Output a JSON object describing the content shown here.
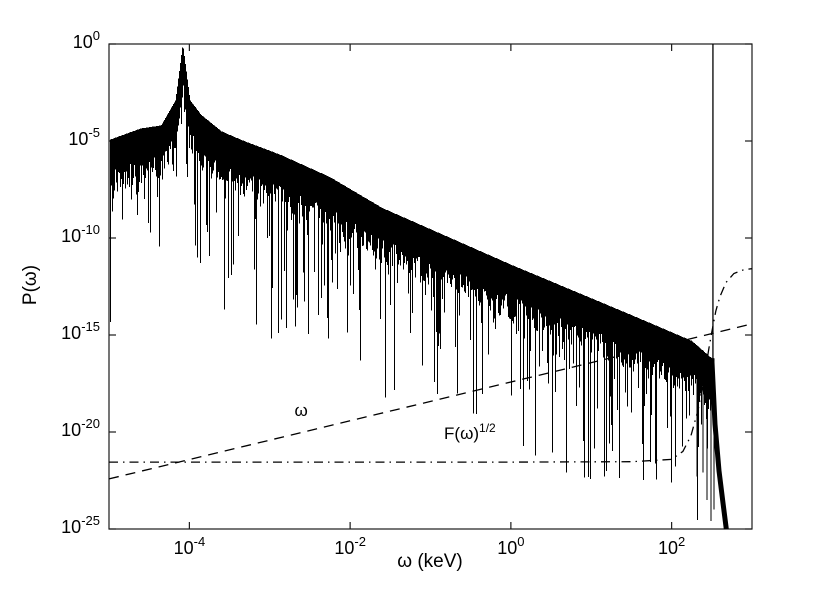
{
  "figure": {
    "background": "#ffffff",
    "frame_color": "#1a1a1a",
    "line_color": "#000000"
  },
  "chart_data": {
    "type": "line",
    "title": "",
    "xlabel": "ω (keV)",
    "ylabel": "P(ω)",
    "xscale": "log",
    "yscale": "log",
    "xlim_log10": [
      -5,
      3
    ],
    "ylim_log10": [
      -25,
      0
    ],
    "grid": false,
    "legend": "none",
    "tick_mantissa": "10",
    "x_tick_exponents": [
      "-4",
      "-2",
      "0",
      "2"
    ],
    "y_tick_exponents": [
      "0",
      "-5",
      "-10",
      "-15",
      "-20",
      "-25"
    ],
    "series": [
      {
        "name": "power-spectrum",
        "label": "P(ω)",
        "style": "solid-noisy",
        "color": "#000000",
        "envelope_log10": [
          [
            -5.0,
            -4.95
          ],
          [
            -4.6,
            -4.35
          ],
          [
            -4.35,
            -4.2
          ],
          [
            -4.17,
            -2.9
          ],
          [
            -4.08,
            0.0
          ],
          [
            -3.99,
            -2.9
          ],
          [
            -3.85,
            -3.66
          ],
          [
            -3.6,
            -4.5
          ],
          [
            -3.35,
            -4.95
          ],
          [
            -2.86,
            -5.72
          ],
          [
            -2.25,
            -6.86
          ],
          [
            -1.6,
            -8.45
          ],
          [
            0.0,
            -11.37
          ],
          [
            1.5,
            -13.97
          ],
          [
            2.25,
            -15.3
          ],
          [
            2.5,
            -16.2
          ]
        ],
        "noise_band_decades": [
          1.6,
          2.9
        ],
        "deep_spike_probability": 0.32,
        "deep_spike_extra_decades_max": 9.0,
        "peak": {
          "x_log10": -4.08,
          "y_log10": 0.0
        },
        "delta_line": {
          "x_log10": 2.514,
          "from_log10": 0.0,
          "to_log10": -16.3
        },
        "cutoff_log10": [
          [
            2.5,
            -16.2
          ],
          [
            2.54,
            -19.6
          ],
          [
            2.59,
            -22.0
          ],
          [
            2.64,
            -23.7
          ],
          [
            2.68,
            -25.0
          ]
        ],
        "extra_spikes_log10": [
          [
            2.316,
            -22.3
          ],
          [
            2.39,
            -22.1
          ],
          [
            2.44,
            -23.5
          ],
          [
            2.49,
            -24.6
          ],
          [
            2.53,
            -24.0
          ]
        ]
      },
      {
        "name": "omega-reference-line",
        "label": "ω",
        "style": "dashed",
        "color": "#000000",
        "points_log10": [
          [
            -5,
            -22.42
          ],
          [
            3,
            -14.43
          ]
        ]
      },
      {
        "name": "sqrt-F-reference-line",
        "label": "F(ω)^1/2",
        "style": "dash-dot",
        "color": "#000000",
        "points_log10": [
          [
            -5,
            -21.55
          ],
          [
            0,
            -21.55
          ],
          [
            1.5,
            -21.53
          ],
          [
            2.0,
            -21.41
          ],
          [
            2.14,
            -21.0
          ],
          [
            2.24,
            -20.2
          ],
          [
            2.33,
            -18.86
          ],
          [
            2.39,
            -17.5
          ],
          [
            2.43,
            -16.55
          ],
          [
            2.465,
            -15.66
          ],
          [
            2.5,
            -14.85
          ],
          [
            2.55,
            -13.77
          ],
          [
            2.6,
            -13.03
          ],
          [
            2.675,
            -12.3
          ],
          [
            2.775,
            -11.83
          ],
          [
            2.9,
            -11.63
          ],
          [
            3.0,
            -11.58
          ]
        ]
      }
    ],
    "annotations": [
      {
        "name": "omega-label",
        "text": "ω",
        "sup": "",
        "x_log10": -2.61,
        "y_log10": -19.0
      },
      {
        "name": "sqrt-F-label",
        "text": "F(ω)",
        "sup": "1/2",
        "x_log10": -0.51,
        "y_log10": -20.2
      }
    ]
  }
}
